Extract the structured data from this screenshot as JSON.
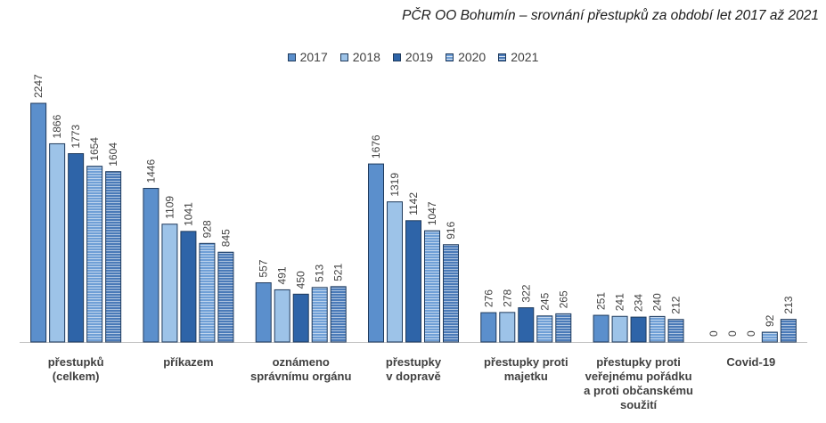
{
  "chart_data": {
    "type": "bar",
    "title": "PČR OO Bohumín – srovnání přestupků za období let 2017 až 2021",
    "xlabel": "",
    "ylabel": "",
    "ylim": [
      0,
      2300
    ],
    "grid": false,
    "legend_position": "top",
    "categories": [
      [
        "přestupků",
        "(celkem)"
      ],
      [
        "příkazem"
      ],
      [
        "oznámeno",
        "správnímu orgánu"
      ],
      [
        "přestupky",
        "v dopravě"
      ],
      [
        "přestupky proti",
        "majetku"
      ],
      [
        "přestupky proti",
        "veřejnému pořádku",
        "a proti občanskému",
        "soužití"
      ],
      [
        "Covid-19"
      ]
    ],
    "series": [
      {
        "name": "2017",
        "color": "#5b8fcc",
        "pattern": "solid",
        "values": [
          2247,
          1446,
          557,
          1676,
          276,
          251,
          0
        ]
      },
      {
        "name": "2018",
        "color": "#9dc3e8",
        "pattern": "solid",
        "values": [
          1866,
          1109,
          491,
          1319,
          278,
          241,
          0
        ]
      },
      {
        "name": "2019",
        "color": "#2e64a8",
        "pattern": "solid",
        "values": [
          1773,
          1041,
          450,
          1142,
          322,
          234,
          0
        ]
      },
      {
        "name": "2020",
        "color": "#6f9fd6",
        "pattern": "striped",
        "values": [
          1654,
          928,
          513,
          1047,
          245,
          240,
          92
        ]
      },
      {
        "name": "2021",
        "color": "#4a7ab8",
        "pattern": "striped",
        "values": [
          1604,
          845,
          521,
          916,
          265,
          212,
          213
        ]
      }
    ]
  }
}
